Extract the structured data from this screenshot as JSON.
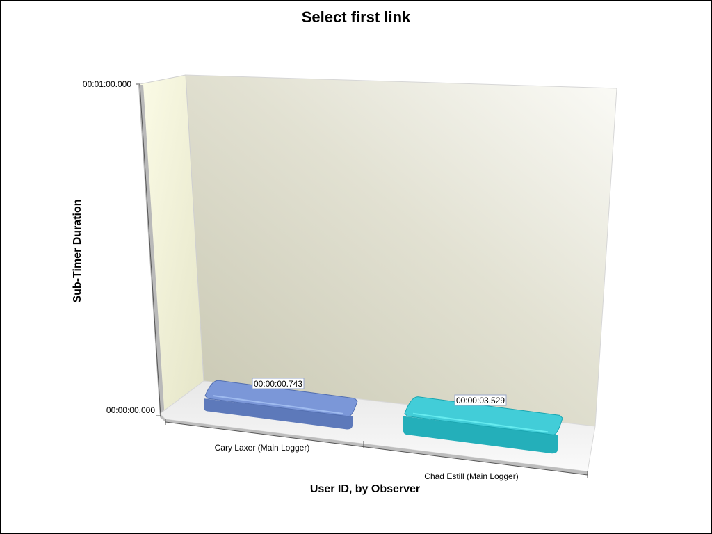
{
  "chart_data": {
    "type": "bar",
    "title": "Select first link",
    "xlabel": "User ID, by Observer",
    "ylabel": "Sub-Timer Duration",
    "categories": [
      "Cary Laxer (Main Logger)",
      "Chad Estill (Main Logger)"
    ],
    "values": [
      0.743,
      3.529
    ],
    "data_labels": [
      "00:00:00.743",
      "00:00:03.529"
    ],
    "ylim": [
      0,
      60
    ],
    "y_ticks": [
      {
        "value": 0,
        "label": "00:00:00.000"
      },
      {
        "value": 60,
        "label": "00:01:00.000"
      }
    ],
    "colors": [
      "#7b97d8",
      "#42cdd8"
    ],
    "grid": false
  }
}
